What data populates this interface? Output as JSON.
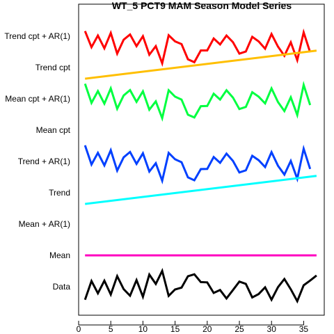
{
  "chart_data": {
    "type": "line",
    "title": "WT_5 PCT9 MAM Season Model Series",
    "xlabel": "",
    "ylabel": "",
    "xlim": [
      0,
      38.2
    ],
    "x_ticks": [
      0,
      5,
      10,
      15,
      20,
      25,
      30,
      35
    ],
    "grid": false,
    "legend": "none",
    "row_labels": [
      "Trend cpt + AR(1)",
      "Trend cpt",
      "Mean cpt + AR(1)",
      "Mean cpt",
      "Trend + AR(1)",
      "Trend",
      "Mean + AR(1)",
      "Mean",
      "Data"
    ],
    "series": [
      {
        "name": "Trend cpt + AR(1)",
        "row": 0,
        "color": "#ff0000",
        "x": [
          1,
          2,
          3,
          4,
          5,
          6,
          7,
          8,
          9,
          10,
          11,
          12,
          13,
          14,
          15,
          16,
          17,
          18,
          19,
          20,
          21,
          22,
          23,
          24,
          25,
          26,
          27,
          28,
          29,
          30,
          31,
          32,
          33,
          34,
          35,
          36
        ],
        "values": [
          0.33,
          -0.72,
          0.04,
          -0.79,
          0.21,
          -1.14,
          -0.23,
          0.11,
          -0.65,
          0.0,
          -1.21,
          -0.65,
          -1.77,
          0.06,
          -0.34,
          -0.52,
          -1.51,
          -1.7,
          -0.93,
          -0.93,
          -0.15,
          -0.54,
          0.04,
          -0.39,
          -1.14,
          -1.0,
          -0.04,
          -0.34,
          -0.82,
          0.14,
          -0.68,
          -1.28,
          -0.4,
          -1.57,
          0.25,
          -1.05
        ]
      },
      {
        "name": "Trend cpt",
        "row": 1,
        "color": "#ffbf00",
        "x": [
          1,
          37
        ],
        "values": [
          -0.73,
          1.1
        ]
      },
      {
        "name": "Mean cpt + AR(1)",
        "row": 2,
        "color": "#00ff40",
        "x": [
          1,
          2,
          3,
          4,
          5,
          6,
          7,
          8,
          9,
          10,
          11,
          12,
          13,
          14,
          15,
          16,
          17,
          18,
          19,
          20,
          21,
          22,
          23,
          24,
          25,
          26,
          27,
          28,
          29,
          30,
          31,
          32,
          33,
          34,
          35,
          36
        ],
        "values": [
          0.98,
          -0.27,
          0.5,
          -0.32,
          0.68,
          -0.65,
          0.22,
          0.57,
          -0.2,
          0.49,
          -0.71,
          -0.17,
          -1.27,
          0.56,
          0.14,
          -0.05,
          -1.04,
          -1.22,
          -0.48,
          -0.47,
          0.33,
          -0.05,
          0.56,
          0.08,
          -0.67,
          -0.53,
          0.43,
          0.14,
          -0.3,
          0.68,
          -0.21,
          -0.8,
          0.1,
          -1.06,
          0.91,
          -0.41
        ]
      },
      {
        "name": "Mean cpt",
        "row": 3,
        "color": "#00ff00",
        "x": [],
        "values": []
      },
      {
        "name": "Trend + AR(1)",
        "row": 4,
        "color": "#0040ff",
        "x": [
          1,
          2,
          3,
          4,
          5,
          6,
          7,
          8,
          9,
          10,
          11,
          12,
          13,
          14,
          15,
          16,
          17,
          18,
          19,
          20,
          21,
          22,
          23,
          24,
          25,
          26,
          27,
          28,
          29,
          30,
          31,
          32,
          33,
          34,
          35,
          36
        ],
        "values": [
          1.05,
          -0.2,
          0.56,
          -0.26,
          0.73,
          -0.6,
          0.27,
          0.62,
          -0.16,
          0.53,
          -0.66,
          -0.12,
          -1.26,
          0.56,
          0.14,
          -0.05,
          -1.04,
          -1.23,
          -0.5,
          -0.49,
          0.29,
          -0.09,
          0.51,
          0.03,
          -0.72,
          -0.58,
          0.37,
          0.08,
          -0.37,
          0.61,
          -0.28,
          -0.86,
          0.03,
          -1.13,
          0.83,
          -0.49
        ]
      },
      {
        "name": "Trend",
        "row": 5,
        "color": "#00ffff",
        "x": [
          1,
          37
        ],
        "values": [
          -0.73,
          1.1
        ]
      },
      {
        "name": "Mean + AR(1)",
        "row": 6,
        "color": "#0000ff",
        "x": [],
        "values": []
      },
      {
        "name": "Mean",
        "row": 7,
        "color": "#ff00bf",
        "x": [
          1,
          37
        ],
        "values": [
          0.0,
          0.0
        ]
      },
      {
        "name": "Data",
        "row": 8,
        "color": "#000000",
        "x": [
          1,
          2,
          3,
          4,
          5,
          6,
          7,
          8,
          9,
          10,
          11,
          12,
          13,
          14,
          15,
          16,
          17,
          18,
          19,
          20,
          21,
          22,
          23,
          24,
          25,
          26,
          27,
          28,
          29,
          30,
          31,
          32,
          33,
          34,
          35,
          36,
          37
        ],
        "values": [
          -0.85,
          0.37,
          -0.43,
          0.39,
          -0.51,
          0.69,
          -0.16,
          -0.59,
          0.43,
          -0.66,
          0.79,
          0.18,
          1.03,
          -0.6,
          -0.18,
          -0.06,
          0.68,
          0.81,
          0.3,
          0.28,
          -0.41,
          -0.22,
          -0.77,
          -0.22,
          0.33,
          0.18,
          -0.7,
          -0.48,
          -0.04,
          -0.85,
          -0.03,
          0.5,
          -0.17,
          -0.95,
          0.09,
          0.4,
          0.73
        ]
      }
    ]
  }
}
